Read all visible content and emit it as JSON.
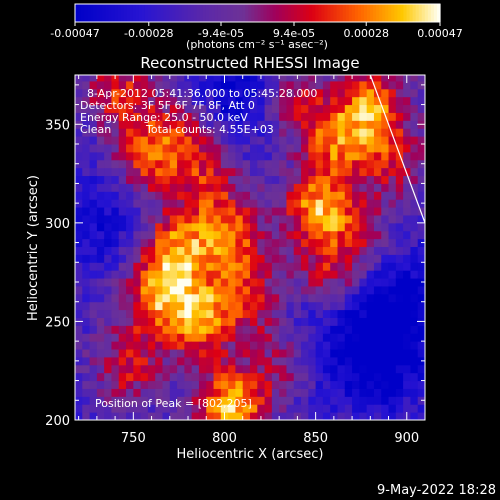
{
  "chart_data": {
    "type": "heatmap",
    "title": "Reconstructed RHESSI Image",
    "xlabel": "Heliocentric X (arcsec)",
    "ylabel": "Heliocentric Y (arcsec)",
    "xlim": [
      718,
      910
    ],
    "ylim": [
      200,
      375
    ],
    "x_ticks": [
      750,
      800,
      850,
      900
    ],
    "y_ticks": [
      200,
      250,
      300,
      350
    ],
    "colorbar": {
      "ticks": [
        "-0.00047",
        "-0.00028",
        "-9.4e-05",
        "9.4e-05",
        "0.00028",
        "0.00047"
      ],
      "values": [
        -0.00047,
        -0.00028,
        -9.4e-05,
        9.4e-05,
        0.00028,
        0.00047
      ],
      "range": [
        -0.00047,
        0.00047
      ],
      "unit_label": "(photons cm⁻² s⁻¹ asec⁻²)"
    },
    "annotations": [
      "8-Apr-2012 05:41:36.000 to 05:45:28.000",
      "Detectors: 3F 5F 6F 7F 8F, Att 0",
      "Energy Range: 25.0 - 50.0 keV",
      "Clean",
      "Total counts: 4.55E+03",
      "Position of Peak = [802,205]"
    ],
    "peak": {
      "x": 802,
      "y": 205
    },
    "hotspots": [
      {
        "x": 802,
        "y": 205,
        "v": 1.0
      },
      {
        "x": 785,
        "y": 250,
        "v": 0.85
      },
      {
        "x": 770,
        "y": 285,
        "v": 0.8
      },
      {
        "x": 760,
        "y": 260,
        "v": 0.7
      },
      {
        "x": 800,
        "y": 290,
        "v": 0.75
      },
      {
        "x": 815,
        "y": 260,
        "v": 0.6
      },
      {
        "x": 755,
        "y": 330,
        "v": 0.65
      },
      {
        "x": 740,
        "y": 365,
        "v": 0.6
      },
      {
        "x": 775,
        "y": 345,
        "v": 0.55
      },
      {
        "x": 790,
        "y": 320,
        "v": 0.5
      },
      {
        "x": 850,
        "y": 305,
        "v": 0.9
      },
      {
        "x": 860,
        "y": 340,
        "v": 0.7
      },
      {
        "x": 855,
        "y": 270,
        "v": 0.6
      },
      {
        "x": 880,
        "y": 360,
        "v": 0.75
      },
      {
        "x": 890,
        "y": 330,
        "v": 0.5
      },
      {
        "x": 835,
        "y": 360,
        "v": 0.55
      },
      {
        "x": 745,
        "y": 225,
        "v": 0.55
      },
      {
        "x": 830,
        "y": 230,
        "v": 0.45
      },
      {
        "x": 875,
        "y": 290,
        "v": 0.35
      }
    ],
    "cold_regions": [
      {
        "x": 880,
        "y": 230,
        "v": -0.55
      },
      {
        "x": 895,
        "y": 260,
        "v": -0.45
      },
      {
        "x": 730,
        "y": 300,
        "v": -0.35
      },
      {
        "x": 805,
        "y": 365,
        "v": -0.5
      },
      {
        "x": 840,
        "y": 250,
        "v": -0.3
      }
    ],
    "limb_line": [
      [
        880,
        375
      ],
      [
        910,
        300
      ]
    ],
    "grid": false
  },
  "footer": {
    "date_stamp": "9-May-2022 18:28"
  },
  "colors": {
    "background": "#000000",
    "text": "#ffffff"
  }
}
